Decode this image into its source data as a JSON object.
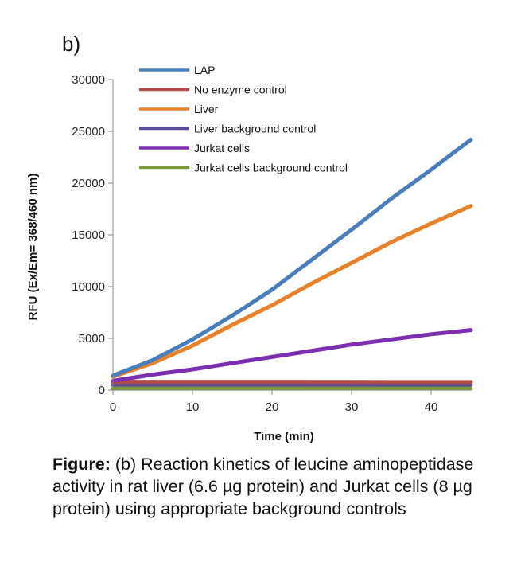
{
  "panel_label": "b)",
  "caption": {
    "label": "Figure:",
    "text": " (b) Reaction kinetics of leucine aminopeptidase activity in rat liver (6.6 µg protein) and Jurkat cells (8 µg protein) using appropriate background controls"
  },
  "chart_data": {
    "type": "line",
    "title": "",
    "xlabel": "Time (min)",
    "ylabel": "RFU (Ex/Em= 368/460 nm)",
    "xlim": [
      0,
      45
    ],
    "ylim": [
      0,
      30000
    ],
    "xticks": [
      0,
      10,
      20,
      30,
      40
    ],
    "yticks": [
      0,
      5000,
      10000,
      15000,
      20000,
      25000,
      30000
    ],
    "legend_position": "top-left",
    "x": [
      0,
      5,
      10,
      15,
      20,
      25,
      30,
      35,
      40,
      45
    ],
    "series": [
      {
        "name": "LAP",
        "color": "#4a7ebb",
        "values": [
          1400,
          2900,
          4900,
          7200,
          9700,
          12600,
          15500,
          18500,
          21300,
          24200
        ]
      },
      {
        "name": "No enzyme control",
        "color": "#b34a4a",
        "values": [
          800,
          800,
          800,
          800,
          800,
          790,
          790,
          780,
          780,
          780
        ]
      },
      {
        "name": "Liver",
        "color": "#e8822a",
        "values": [
          1300,
          2600,
          4300,
          6300,
          8200,
          10300,
          12300,
          14300,
          16100,
          17800
        ]
      },
      {
        "name": "Liver background control",
        "color": "#5b4a99",
        "values": [
          500,
          500,
          500,
          500,
          500,
          500,
          500,
          500,
          500,
          500
        ]
      },
      {
        "name": "Jurkat cells",
        "color": "#7b2fb0",
        "values": [
          900,
          1500,
          2000,
          2600,
          3200,
          3800,
          4400,
          4900,
          5400,
          5800
        ]
      },
      {
        "name": "Jurkat cells background control",
        "color": "#7a9a3a",
        "values": [
          150,
          150,
          150,
          150,
          150,
          150,
          150,
          150,
          150,
          150
        ]
      }
    ]
  }
}
